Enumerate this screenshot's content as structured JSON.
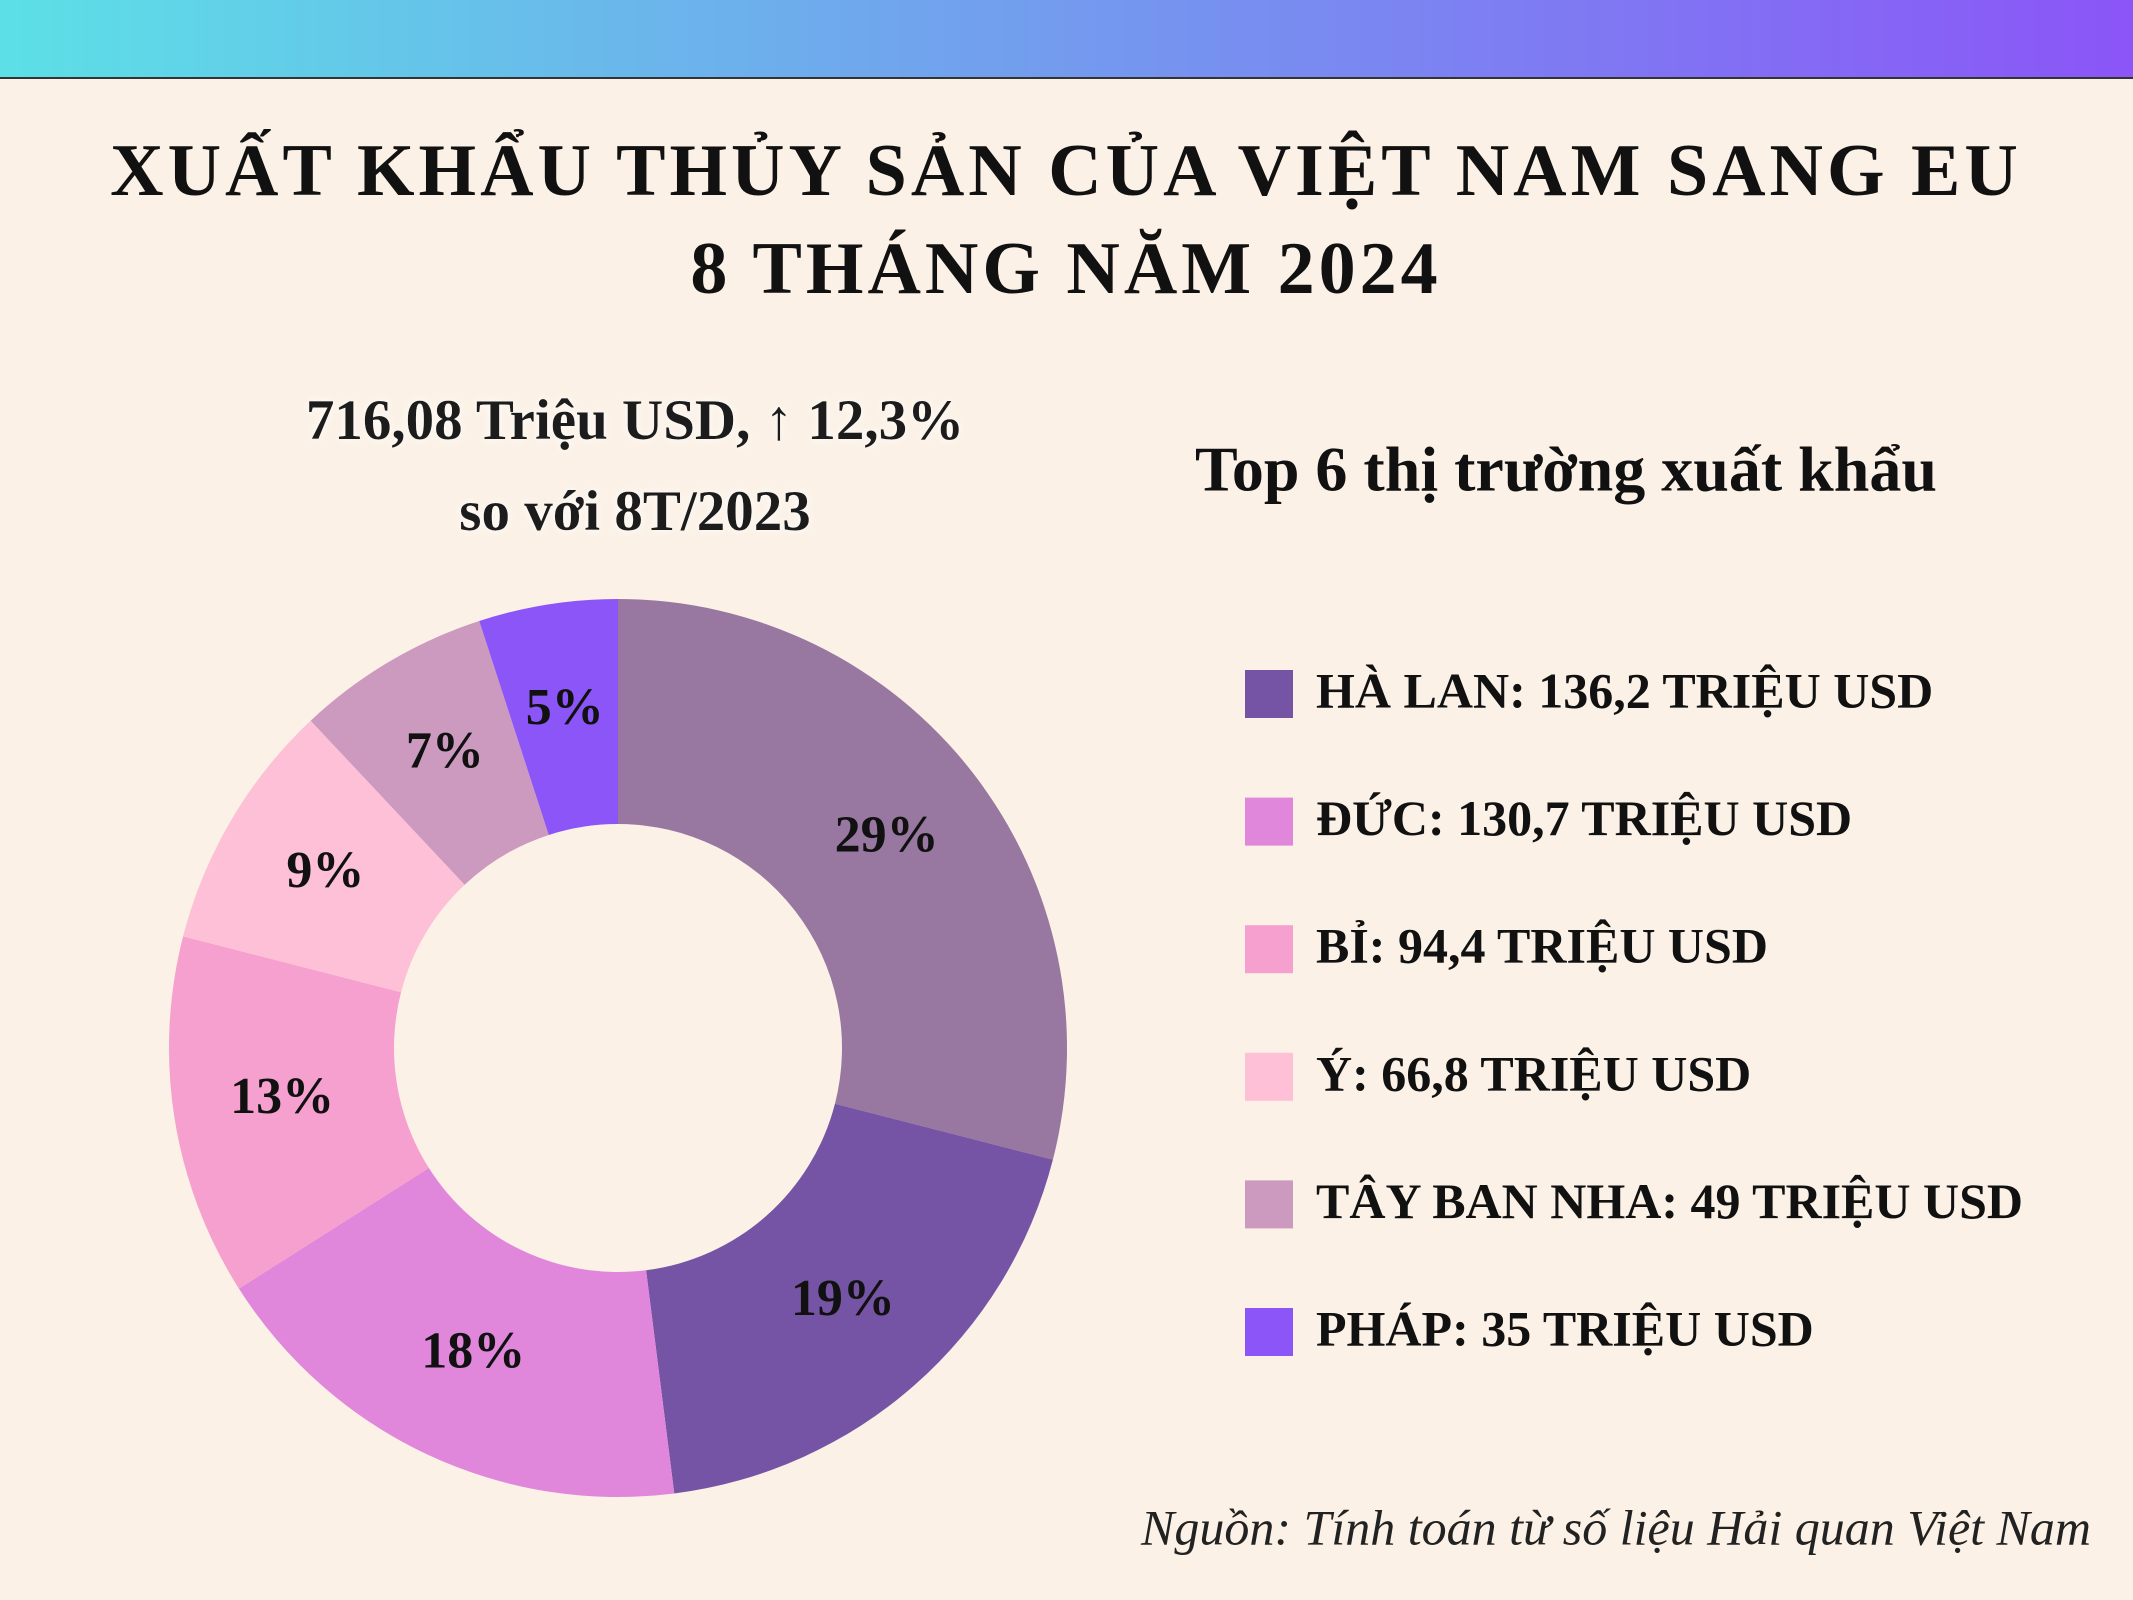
{
  "chart_data": {
    "type": "donut",
    "title": [
      "XUẤT KHẨU THỦY SẢN CỦA VIỆT NAM SANG EU",
      "8 THÁNG NĂM 2024"
    ],
    "subtitle": [
      "716,08 Triệu USD, ↑ 12,3%",
      "so với 8T/2023"
    ],
    "legend_title": "Top 6 thị trường xuất khẩu",
    "categories": [
      null,
      "HÀ LAN: 136,2 TRIỆU USD",
      "ĐỨC: 130,7 TRIỆU USD",
      "BỈ: 94,4 TRIỆU USD",
      "Ý: 66,8 TRIỆU USD",
      "TÂY BAN NHA: 49 TRIỆU USD",
      "PHÁP: 35 TRIỆU USD"
    ],
    "values": [
      29,
      19,
      18,
      13,
      9,
      7,
      5
    ],
    "value_labels": [
      "29%",
      "19%",
      "18%",
      "13%",
      "9%",
      "7%",
      "5%"
    ],
    "colors": [
      "#9878a0",
      "#7654a5",
      "#e087db",
      "#f5a0cf",
      "#fdc0d6",
      "#cc99bf",
      "#8b55f7"
    ],
    "source": "Nguồn: Tính toán từ số liệu Hải quan Việt Nam"
  }
}
